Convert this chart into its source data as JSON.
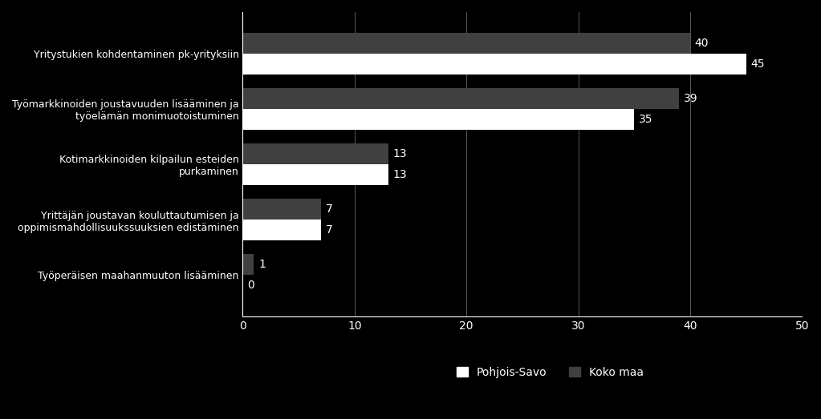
{
  "categories": [
    "Yritystukien kohdentaminen pk-yrityksiin",
    "Työmarkkinoiden joustavuuden lisääminen ja\ntyöelämän monimuotoistuminen",
    "Kotimarkkinoiden kilpailun esteiden\npurkaminen",
    "Yrittäjän joustavan kouluttautumisen ja\noppimismahdollisuukssuuksien edistäminen",
    "Työperäisen maahanmuuton lisääminen"
  ],
  "pohjois_savo": [
    45,
    35,
    13,
    7,
    0
  ],
  "koko_maa": [
    40,
    39,
    13,
    7,
    1
  ],
  "background_color": "#000000",
  "bar_color_pohjois_savo": "#ffffff",
  "bar_color_koko_maa": "#404040",
  "text_color": "#ffffff",
  "xlim": [
    0,
    50
  ],
  "xticks": [
    0,
    10,
    20,
    30,
    40,
    50
  ],
  "legend_labels": [
    "Pohjois-Savo",
    "Koko maa"
  ],
  "bar_height": 0.38,
  "label_fontsize": 10,
  "tick_fontsize": 10,
  "legend_fontsize": 10,
  "ylabel_fontsize": 9
}
